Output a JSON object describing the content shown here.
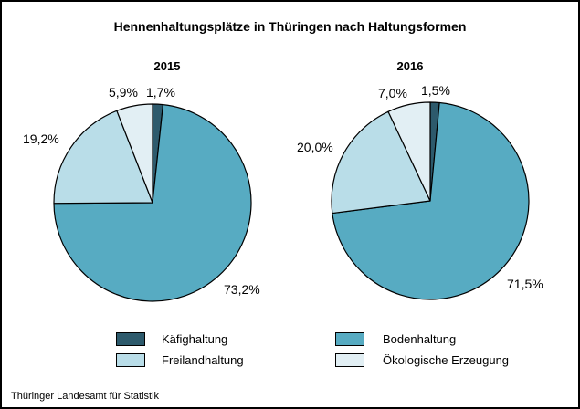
{
  "window": {
    "background": "#ffffff",
    "border_color": "#000000"
  },
  "title": "Hennenhaltungsplätze in Thüringen nach Haltungsformen",
  "source": "Thüringer Landesamt für Statistik",
  "colors": {
    "kaefighaltung": "#2d5a6c",
    "bodenhaltung": "#57abc2",
    "freilandhaltung": "#b9dde8",
    "oekologische_erzeugung": "#e2eff4",
    "slice_outline": "#000000"
  },
  "chart_data": [
    {
      "type": "pie",
      "title": "2015",
      "start_angle_deg": 0,
      "direction": "clockwise",
      "unit": "%",
      "slices": [
        {
          "name": "Käfighaltung",
          "value": 1.7,
          "pct_label": "1,7%",
          "color": "#2d5a6c"
        },
        {
          "name": "Bodenhaltung",
          "value": 73.2,
          "pct_label": "73,2%",
          "color": "#57abc2"
        },
        {
          "name": "Freilandhaltung",
          "value": 19.2,
          "pct_label": "19,2%",
          "color": "#b9dde8"
        },
        {
          "name": "Ökologische Erzeugung",
          "value": 5.9,
          "pct_label": "5,9%",
          "color": "#e2eff4"
        }
      ]
    },
    {
      "type": "pie",
      "title": "2016",
      "start_angle_deg": 0,
      "direction": "clockwise",
      "unit": "%",
      "slices": [
        {
          "name": "Käfighaltung",
          "value": 1.5,
          "pct_label": "1,5%",
          "color": "#2d5a6c"
        },
        {
          "name": "Bodenhaltung",
          "value": 71.5,
          "pct_label": "71,5%",
          "color": "#57abc2"
        },
        {
          "name": "Freilandhaltung",
          "value": 20.0,
          "pct_label": "20,0%",
          "color": "#b9dde8"
        },
        {
          "name": "Ökologische Erzeugung",
          "value": 7.0,
          "pct_label": "7,0%",
          "color": "#e2eff4"
        }
      ]
    }
  ],
  "legend": {
    "items": [
      {
        "label": "Käfighaltung",
        "color": "#2d5a6c"
      },
      {
        "label": "Freilandhaltung",
        "color": "#b9dde8"
      },
      {
        "label": "Bodenhaltung",
        "color": "#57abc2"
      },
      {
        "label": "Ökologische Erzeugung",
        "color": "#e2eff4"
      }
    ]
  }
}
